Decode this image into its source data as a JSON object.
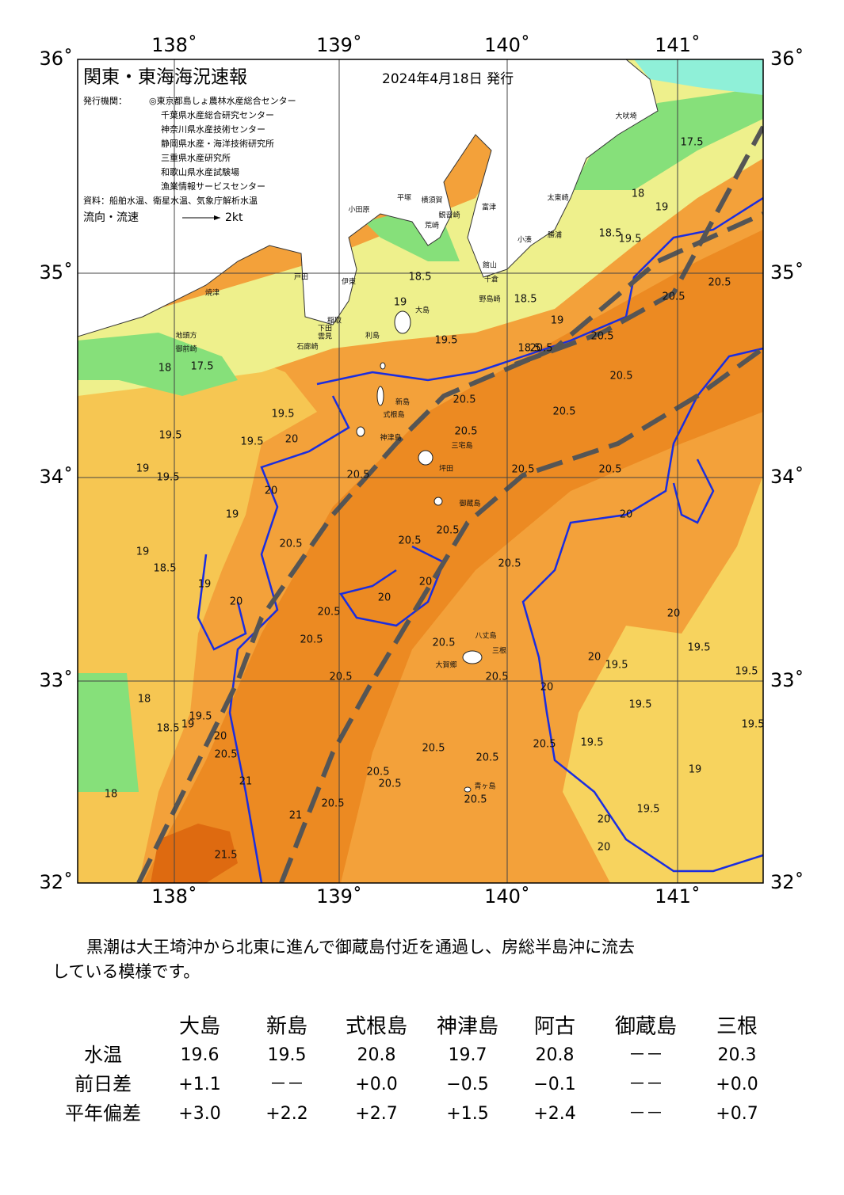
{
  "map": {
    "title": "関東・東海海況速報",
    "date": "2024年4月18日 発行",
    "issuer_label": "発行機関：",
    "issuers": [
      "◎東京都島しょ農林水産総合センター",
      "千葉県水産総合研究センター",
      "神奈川県水産技術センター",
      "静岡県水産・海洋技術研究所",
      "三重県水産研究所",
      "和歌山県水産試験場",
      "漁業情報サービスセンター"
    ],
    "source": "資料：船舶水温、衛星水温、気象庁解析水温",
    "flow_label": "流向・流速",
    "flow_scale": "2kt",
    "lon_labels_top": [
      "138˚",
      "139˚",
      "140˚",
      "141˚"
    ],
    "lon_labels_bottom": [
      "138˚",
      "139˚",
      "140˚",
      "141˚"
    ],
    "lat_labels_left": [
      "36˚",
      "35˚",
      "34˚",
      "33˚",
      "32˚"
    ],
    "lat_labels_right": [
      "36˚",
      "35˚",
      "34˚",
      "33˚",
      "32˚"
    ],
    "contour_labels": [
      "17.5",
      "18",
      "19",
      "18.5",
      "19.5",
      "20.5",
      "20.5",
      "18.5",
      "19",
      "18.5",
      "19",
      "20.5",
      "19.5",
      "20.5",
      "20.5",
      "20.5",
      "20.5",
      "19.5",
      "20",
      "19.5",
      "19.5",
      "19",
      "19.5",
      "20.5",
      "20.5",
      "20.5",
      "20.5",
      "20",
      "19",
      "20.5",
      "19",
      "18.5",
      "20.5",
      "20.5",
      "20",
      "20.5",
      "20",
      "19",
      "20",
      "20.5",
      "20",
      "20.5",
      "20",
      "19.5",
      "20.5",
      "20",
      "19.5",
      "19.5",
      "20.5",
      "20.5",
      "20",
      "19.5",
      "18",
      "19.5",
      "18.5",
      "19",
      "19.5",
      "20",
      "20.5",
      "20.5",
      "19.5",
      "20.5",
      "20.5",
      "21",
      "20.5",
      "20.5",
      "19",
      "18",
      "20.5",
      "20.5",
      "21",
      "20",
      "19.5",
      "21.5",
      "20",
      "17.5",
      "18",
      "18.5"
    ],
    "place_names": [
      "大島",
      "利島",
      "新島",
      "式根島",
      "神津島",
      "三宅島",
      "坪田",
      "御蔵島",
      "八丈島",
      "三根",
      "大賀郷",
      "青ヶ島",
      "大吠埼",
      "太東崎",
      "勝浦",
      "小湊",
      "館山",
      "千倉",
      "野島崎",
      "富津",
      "観音崎",
      "横須賀",
      "平塚",
      "荒崎",
      "小田原",
      "伊東",
      "稲取",
      "下田",
      "石廊崎",
      "雲見",
      "戸田",
      "焼津",
      "地頭方",
      "御前崎"
    ]
  },
  "summary": [
    "　黒潮は大王埼沖から北東に進んで御蔵島付近を通過し、房総半島沖に流去",
    "している模様です。"
  ],
  "table": {
    "columns": [
      "大島",
      "新島",
      "式根島",
      "神津島",
      "阿古",
      "御蔵島",
      "三根"
    ],
    "rows": [
      {
        "label": "水温",
        "cells": [
          "19.6",
          "19.5",
          "20.8",
          "19.7",
          "20.8",
          "－－",
          "20.3"
        ]
      },
      {
        "label": "前日差",
        "cells": [
          "+1.1",
          "－－",
          "+0.0",
          "−0.5",
          "−0.1",
          "－－",
          "+0.0"
        ]
      },
      {
        "label": "平年偏差",
        "cells": [
          "+3.0",
          "+2.2",
          "+2.7",
          "+1.5",
          "+2.4",
          "－－",
          "+0.7"
        ]
      }
    ]
  }
}
